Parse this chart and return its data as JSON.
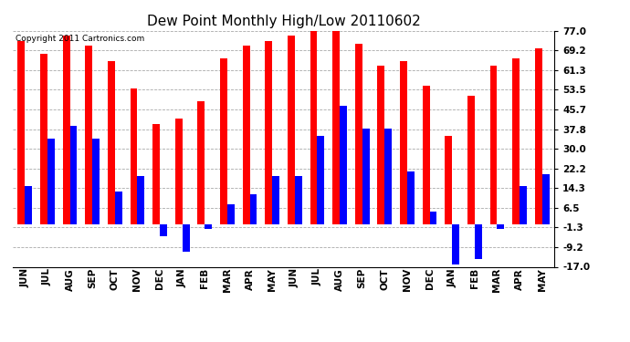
{
  "title": "Dew Point Monthly High/Low 20110602",
  "copyright": "Copyright 2011 Cartronics.com",
  "categories": [
    "JUN",
    "JUL",
    "AUG",
    "SEP",
    "OCT",
    "NOV",
    "DEC",
    "JAN",
    "FEB",
    "MAR",
    "APR",
    "MAY",
    "JUN",
    "JUL",
    "AUG",
    "SEP",
    "OCT",
    "NOV",
    "DEC",
    "JAN",
    "FEB",
    "MAR",
    "APR",
    "MAY"
  ],
  "highs": [
    73,
    68,
    75,
    71,
    65,
    54,
    40,
    42,
    49,
    66,
    71,
    73,
    75,
    77,
    77,
    72,
    63,
    65,
    55,
    35,
    51,
    63,
    66,
    70
  ],
  "lows": [
    15,
    34,
    39,
    34,
    13,
    19,
    -5,
    -11,
    -2,
    8,
    12,
    19,
    19,
    35,
    47,
    38,
    38,
    21,
    5,
    -16,
    -14,
    -2,
    15,
    20
  ],
  "high_color": "#ff0000",
  "low_color": "#0000ff",
  "background_color": "#ffffff",
  "plot_bg_color": "#ffffff",
  "grid_color": "#aaaaaa",
  "yticks": [
    77.0,
    69.2,
    61.3,
    53.5,
    45.7,
    37.8,
    30.0,
    22.2,
    14.3,
    6.5,
    -1.3,
    -9.2,
    -17.0
  ],
  "ylim": [
    -17.0,
    77.0
  ],
  "title_fontsize": 11,
  "tick_fontsize": 7.5,
  "bar_width": 0.32,
  "fig_width": 6.9,
  "fig_height": 3.75,
  "dpi": 100
}
